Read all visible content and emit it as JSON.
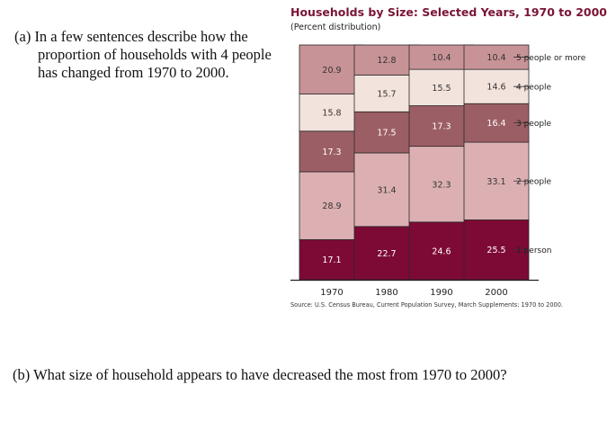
{
  "questions": {
    "a": "(a)  In a few sentences describe how the proportion of households with 4 people has changed from 1970 to 2000.",
    "b": "(b)  What size of household appears to have decreased the most from 1970 to 2000?"
  },
  "chart_data": {
    "type": "bar",
    "stacked": true,
    "title": "Households by Size: Selected Years, 1970 to 2000",
    "subtitle": "(Percent distribution)",
    "categories": [
      "1970",
      "1980",
      "1990",
      "2000"
    ],
    "series": [
      {
        "name": "1 person",
        "values": [
          17.1,
          22.7,
          24.6,
          25.5
        ],
        "color": "#7d0a35",
        "label_color": "#ffffff"
      },
      {
        "name": "2 people",
        "values": [
          28.9,
          31.4,
          32.3,
          33.1
        ],
        "color": "#dcb0b3",
        "label_color": "#333333"
      },
      {
        "name": "3 people",
        "values": [
          17.3,
          17.5,
          17.3,
          16.4
        ],
        "color": "#9c5e65",
        "label_color": "#ffffff"
      },
      {
        "name": "4 people",
        "values": [
          15.8,
          15.7,
          15.5,
          14.6
        ],
        "color": "#f3e3dd",
        "label_color": "#333333"
      },
      {
        "name": "5 people or more",
        "values": [
          20.9,
          12.8,
          10.4,
          10.4
        ],
        "color": "#c79397",
        "label_color": "#333333"
      }
    ],
    "ylim": [
      0,
      100
    ],
    "grid": false,
    "legend": "right",
    "source": "Source: U.S. Census Bureau, Current Population Survey, March Supplements:  1970 to 2000."
  }
}
